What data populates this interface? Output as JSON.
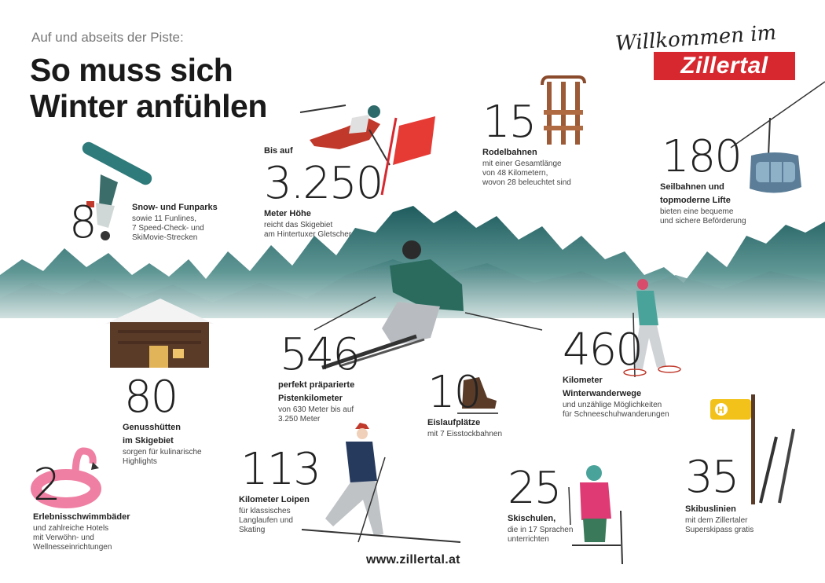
{
  "header": {
    "kicker": "Auf und abseits der Piste:",
    "headline_line1": "So muss sich",
    "headline_line2": "Winter anfühlen"
  },
  "brand": {
    "script_text": "Willkommen im",
    "name": "Zillertal",
    "color": "#d7282f"
  },
  "stats": {
    "altitude": {
      "prefix": "Bis auf",
      "number": "3.250",
      "label": "Meter Höhe",
      "desc1": "reicht das Skigebiet",
      "desc2": "am Hintertuxer Gletscher"
    },
    "funparks": {
      "number": "8",
      "label": "Snow- und Funparks",
      "desc1": "sowie 11 Funlines,",
      "desc2": "7 Speed-Check- und",
      "desc3": "SkiMovie-Strecken"
    },
    "toboggan": {
      "number": "15",
      "label": "Rodelbahnen",
      "desc1": "mit einer Gesamtlänge",
      "desc2": "von 48 Kilometern,",
      "desc3": "wovon 28 beleuchtet sind"
    },
    "lifts": {
      "number": "180",
      "label1": "Seilbahnen und",
      "label2": "topmoderne Lifte",
      "desc1": "bieten eine bequeme",
      "desc2": "und sichere Beförderung"
    },
    "slopes": {
      "number": "546",
      "label1": "perfekt präparierte",
      "label2": "Pistenkilometer",
      "desc1": "von 630 Meter bis auf",
      "desc2": "3.250 Meter"
    },
    "huts": {
      "number": "80",
      "label1": "Genusshütten",
      "label2": "im Skigebiet",
      "desc1": "sorgen für kulinarische",
      "desc2": "Highlights"
    },
    "skating": {
      "number": "10",
      "label": "Eislaufplätze",
      "desc1": "mit 7 Eisstockbahnen"
    },
    "hiking": {
      "number": "460",
      "label1": "Kilometer",
      "label2": "Winterwanderwege",
      "desc1": "und unzählige Möglichkeiten",
      "desc2": "für Schneeschuhwanderungen"
    },
    "pools": {
      "number": "2",
      "label": "Erlebnisschwimmbäder",
      "desc1": "und zahlreiche Hotels",
      "desc2": "mit Verwöhn- und",
      "desc3": "Wellnesseinrichtungen"
    },
    "trails": {
      "number": "113",
      "label": "Kilometer Loipen",
      "desc1": "für klassisches",
      "desc2": "Langlaufen und",
      "desc3": "Skating"
    },
    "schools": {
      "number": "25",
      "label": "Skischulen,",
      "desc1": "die in 17 Sprachen",
      "desc2": "unterrichten"
    },
    "bus": {
      "number": "35",
      "label": "Skibuslinien",
      "desc1": "mit dem Zillertaler",
      "desc2": "Superskipass gratis"
    }
  },
  "footer": {
    "url": "www.zillertal.at"
  },
  "icons": [
    "snowboarder-icon",
    "ski-jumper-icon",
    "slalom-flag-icon",
    "sled-icon",
    "gondola-icon",
    "mountain-range-icon",
    "skier-icon",
    "hut-icon",
    "ice-skate-icon",
    "snowshoe-hiker-icon",
    "flamingo-float-icon",
    "cross-country-skier-icon",
    "child-skier-icon",
    "bus-stop-sign-icon",
    "skis-icon"
  ],
  "colors": {
    "mountain": "#2f6a6a",
    "mountain_light": "#8fb8b6",
    "accent_red": "#d7282f",
    "hut_wood": "#5a3b28",
    "teal_jacket": "#2a6b5e"
  }
}
